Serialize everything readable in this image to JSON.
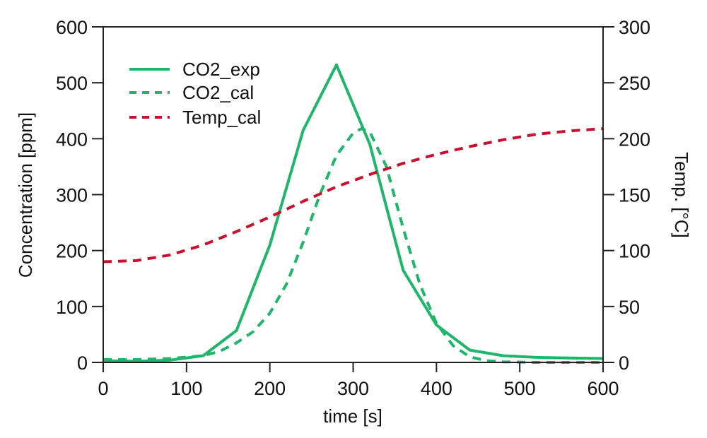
{
  "chart_data": {
    "type": "line",
    "title": "",
    "xlabel": "time [s]",
    "ylabel": "Concentration [ppm]",
    "y2label": "Temp. [°C]",
    "xlim": [
      0,
      600
    ],
    "ylim": [
      0,
      600
    ],
    "y2lim": [
      0,
      300
    ],
    "xticks": [
      0,
      100,
      200,
      300,
      400,
      500,
      600
    ],
    "yticks": [
      0,
      100,
      200,
      300,
      400,
      500,
      600
    ],
    "y2ticks": [
      0,
      50,
      100,
      150,
      200,
      250,
      300
    ],
    "grid": false,
    "legend_position": "top-left",
    "series": [
      {
        "name": "CO2_exp",
        "axis": "left",
        "style": "solid",
        "color": "#1fb56a",
        "x": [
          0,
          40,
          80,
          120,
          160,
          200,
          240,
          280,
          320,
          360,
          400,
          440,
          480,
          520,
          560,
          600
        ],
        "y": [
          3,
          2,
          4,
          12,
          57,
          210,
          415,
          532,
          390,
          165,
          67,
          22,
          12,
          9,
          8,
          7
        ]
      },
      {
        "name": "CO2_cal",
        "axis": "left",
        "style": "dashed",
        "color": "#1fb56a",
        "x": [
          0,
          40,
          80,
          120,
          140,
          160,
          180,
          200,
          220,
          240,
          260,
          280,
          300,
          310,
          320,
          340,
          360,
          380,
          400,
          420,
          440,
          460,
          480,
          520,
          560,
          600
        ],
        "y": [
          5,
          5,
          7,
          12,
          20,
          35,
          55,
          88,
          140,
          215,
          300,
          370,
          410,
          418,
          412,
          350,
          240,
          140,
          70,
          30,
          10,
          3,
          1,
          0,
          0,
          0
        ]
      },
      {
        "name": "Temp_cal",
        "axis": "right",
        "style": "dashed",
        "color": "#c8102e",
        "x": [
          0,
          40,
          80,
          120,
          160,
          200,
          240,
          280,
          320,
          360,
          400,
          440,
          480,
          520,
          560,
          600
        ],
        "y": [
          90,
          91,
          96,
          105,
          117,
          130,
          144,
          157,
          168,
          178,
          186,
          193,
          199,
          204,
          207,
          209
        ]
      }
    ]
  }
}
